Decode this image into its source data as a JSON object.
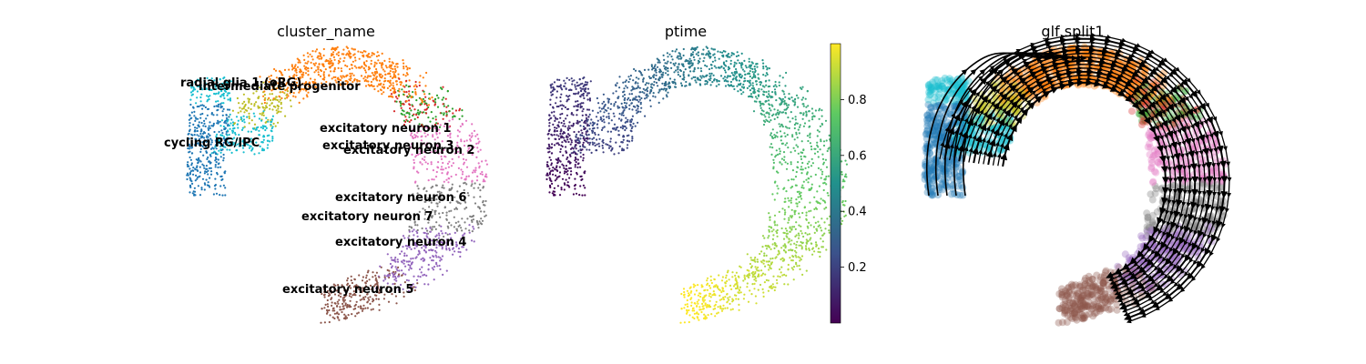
{
  "chart_data": [
    {
      "type": "scatter",
      "title": "cluster_name",
      "colored_by": "categorical",
      "on_data_labels": [
        "radial glia 1 (oRG)",
        "intermediate progenitor",
        "cycling RG/IPC",
        "excitatory neuron 1",
        "excitatory neuron 3",
        "excitatory neuron 2",
        "excitatory neuron 6",
        "excitatory neuron 7",
        "excitatory neuron 4",
        "excitatory neuron 5"
      ],
      "cluster_colors": {
        "radial glia 1 (oRG)": "#17becf",
        "intermediate progenitor": "#bcbd22",
        "cycling RG/IPC": "#1f77b4",
        "excitatory neuron 1": "#ff7f0e",
        "excitatory neuron 3": "#d62728",
        "excitatory neuron 2": "#2ca02c",
        "excitatory neuron 6": "#e377c2",
        "excitatory neuron 7": "#7f7f7f",
        "excitatory neuron 4": "#9467bd",
        "excitatory neuron 5": "#8c564b"
      },
      "axes_visible": false
    },
    {
      "type": "scatter",
      "title": "ptime",
      "colored_by": "continuous",
      "colormap": "viridis",
      "colorbar": {
        "range": [
          0.0,
          1.0
        ],
        "ticks": [
          "0.2",
          "0.4",
          "0.6",
          "0.8"
        ]
      },
      "axes_visible": false
    },
    {
      "type": "scatter",
      "title": "glf split1",
      "colored_by": "categorical",
      "overlay": "velocity streamlines with arrowheads",
      "axes_visible": false
    }
  ]
}
